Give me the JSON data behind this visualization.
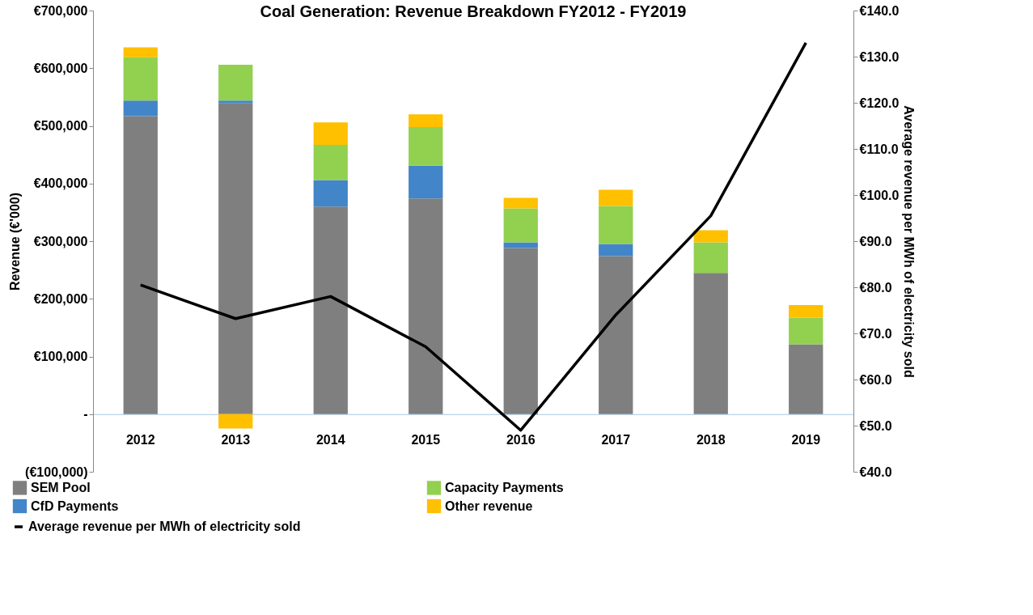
{
  "chart_data": {
    "type": "bar",
    "title": "Coal Generation: Revenue Breakdown FY2012 - FY2019",
    "ylabel": "Revenue (€'000)",
    "y2label": "Average revenue per MWh of electricity sold",
    "categories": [
      "2012",
      "2013",
      "2014",
      "2015",
      "2016",
      "2017",
      "2018",
      "2019"
    ],
    "stacked": true,
    "legend": "bottom",
    "series": [
      {
        "name": "SEM Pool",
        "color": "#7f7f7f",
        "values": [
          517000,
          539000,
          360000,
          374000,
          288000,
          274000,
          245000,
          121000
        ]
      },
      {
        "name": "CfD Payments",
        "color": "#4285c8",
        "values": [
          27000,
          5000,
          46000,
          57000,
          10000,
          21000,
          0,
          0
        ]
      },
      {
        "name": "Capacity Payments",
        "color": "#92d050",
        "values": [
          75000,
          62000,
          61000,
          67000,
          59000,
          66000,
          53000,
          46000
        ]
      },
      {
        "name": "Other revenue",
        "color": "#ffc000",
        "values": [
          17000,
          -25000,
          39000,
          22000,
          18000,
          28000,
          21000,
          22000
        ]
      },
      {
        "name": "Average revenue per MWh of electricity sold",
        "type": "line",
        "axis": "y2",
        "color": "#000000",
        "values": [
          80.5,
          73.2,
          78.0,
          67.1,
          49.0,
          74.0,
          95.5,
          133.0
        ]
      }
    ],
    "ylim": [
      -100000,
      700000
    ],
    "yticks": [
      {
        "value": -100000,
        "label": "(€100,000)"
      },
      {
        "value": 0,
        "label": "-"
      },
      {
        "value": 100000,
        "label": "€100,000"
      },
      {
        "value": 200000,
        "label": "€200,000"
      },
      {
        "value": 300000,
        "label": "€300,000"
      },
      {
        "value": 400000,
        "label": "€400,000"
      },
      {
        "value": 500000,
        "label": "€500,000"
      },
      {
        "value": 600000,
        "label": "€600,000"
      },
      {
        "value": 700000,
        "label": "€700,000"
      }
    ],
    "y2lim": [
      40,
      140
    ],
    "y2ticks": [
      {
        "value": 40,
        "label": "€40.0"
      },
      {
        "value": 50,
        "label": "€50.0"
      },
      {
        "value": 60,
        "label": "€60.0"
      },
      {
        "value": 70,
        "label": "€70.0"
      },
      {
        "value": 80,
        "label": "€80.0"
      },
      {
        "value": 90,
        "label": "€90.0"
      },
      {
        "value": 100,
        "label": "€100.0"
      },
      {
        "value": 110,
        "label": "€110.0"
      },
      {
        "value": 120,
        "label": "€120.0"
      },
      {
        "value": 130,
        "label": "€130.0"
      },
      {
        "value": 140,
        "label": "€140.0"
      }
    ],
    "grid": false
  }
}
